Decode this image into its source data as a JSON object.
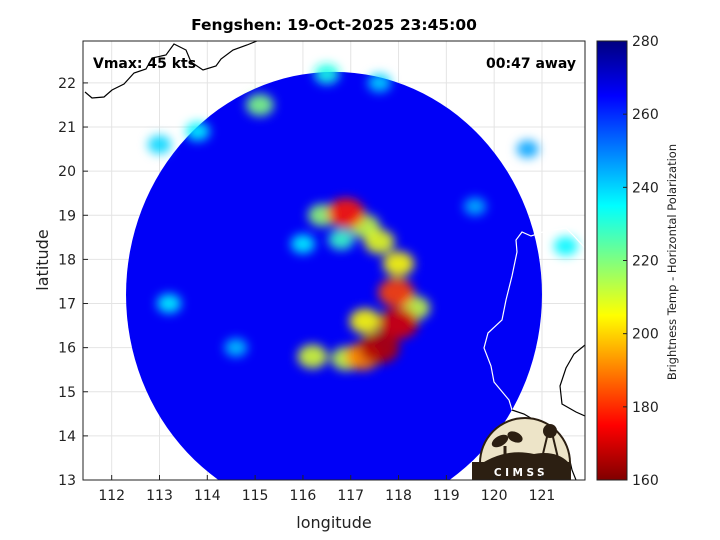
{
  "chart_data": {
    "type": "heatmap",
    "title": "Fengshen: 19-Oct-2025 23:45:00",
    "xlabel": "longitude",
    "ylabel": "latitude",
    "xlim": [
      111.4,
      121.9
    ],
    "ylim": [
      13,
      22.95
    ],
    "x_ticks": [
      112,
      113,
      114,
      115,
      116,
      117,
      118,
      119,
      120,
      121
    ],
    "y_ticks": [
      13,
      14,
      15,
      16,
      17,
      18,
      19,
      20,
      21,
      22
    ],
    "grid": true,
    "annotations": {
      "vmax": "Vmax: 45 kts",
      "time_offset": "00:47 away"
    },
    "colorbar": {
      "label": "Brightness Temp - Horizontal Polarization",
      "range": [
        160,
        280
      ],
      "ticks": [
        160,
        180,
        200,
        220,
        240,
        260,
        280
      ],
      "colormap": "jet"
    },
    "swath": {
      "center": [
        116.65,
        17.2
      ],
      "radius_lon": 4.35,
      "radius_lat": 5.05
    },
    "background_value": 266,
    "features": [
      {
        "lon": 116.9,
        "lat": 19.05,
        "value": 178
      },
      {
        "lon": 116.4,
        "lat": 19.0,
        "value": 218
      },
      {
        "lon": 117.3,
        "lat": 18.75,
        "value": 212
      },
      {
        "lon": 117.6,
        "lat": 18.4,
        "value": 208
      },
      {
        "lon": 116.8,
        "lat": 18.45,
        "value": 228
      },
      {
        "lon": 116.0,
        "lat": 18.35,
        "value": 236
      },
      {
        "lon": 118.0,
        "lat": 17.9,
        "value": 205
      },
      {
        "lon": 117.95,
        "lat": 17.25,
        "value": 183
      },
      {
        "lon": 118.0,
        "lat": 16.55,
        "value": 170
      },
      {
        "lon": 117.6,
        "lat": 16.0,
        "value": 166
      },
      {
        "lon": 117.25,
        "lat": 15.8,
        "value": 190
      },
      {
        "lon": 117.3,
        "lat": 16.6,
        "value": 205
      },
      {
        "lon": 118.35,
        "lat": 16.9,
        "value": 212
      },
      {
        "lon": 116.9,
        "lat": 15.75,
        "value": 212
      },
      {
        "lon": 116.2,
        "lat": 15.8,
        "value": 210
      },
      {
        "lon": 115.1,
        "lat": 21.5,
        "value": 220
      },
      {
        "lon": 116.5,
        "lat": 22.2,
        "value": 232
      },
      {
        "lon": 117.6,
        "lat": 22.0,
        "value": 240
      },
      {
        "lon": 113.8,
        "lat": 20.9,
        "value": 236
      },
      {
        "lon": 113.0,
        "lat": 20.6,
        "value": 240
      },
      {
        "lon": 113.2,
        "lat": 17.0,
        "value": 236
      },
      {
        "lon": 114.6,
        "lat": 16.0,
        "value": 242
      },
      {
        "lon": 119.6,
        "lat": 19.2,
        "value": 244
      },
      {
        "lon": 120.7,
        "lat": 20.5,
        "value": 246
      },
      {
        "lon": 121.5,
        "lat": 18.3,
        "value": 236
      }
    ],
    "logo_text": "CIMSS"
  }
}
